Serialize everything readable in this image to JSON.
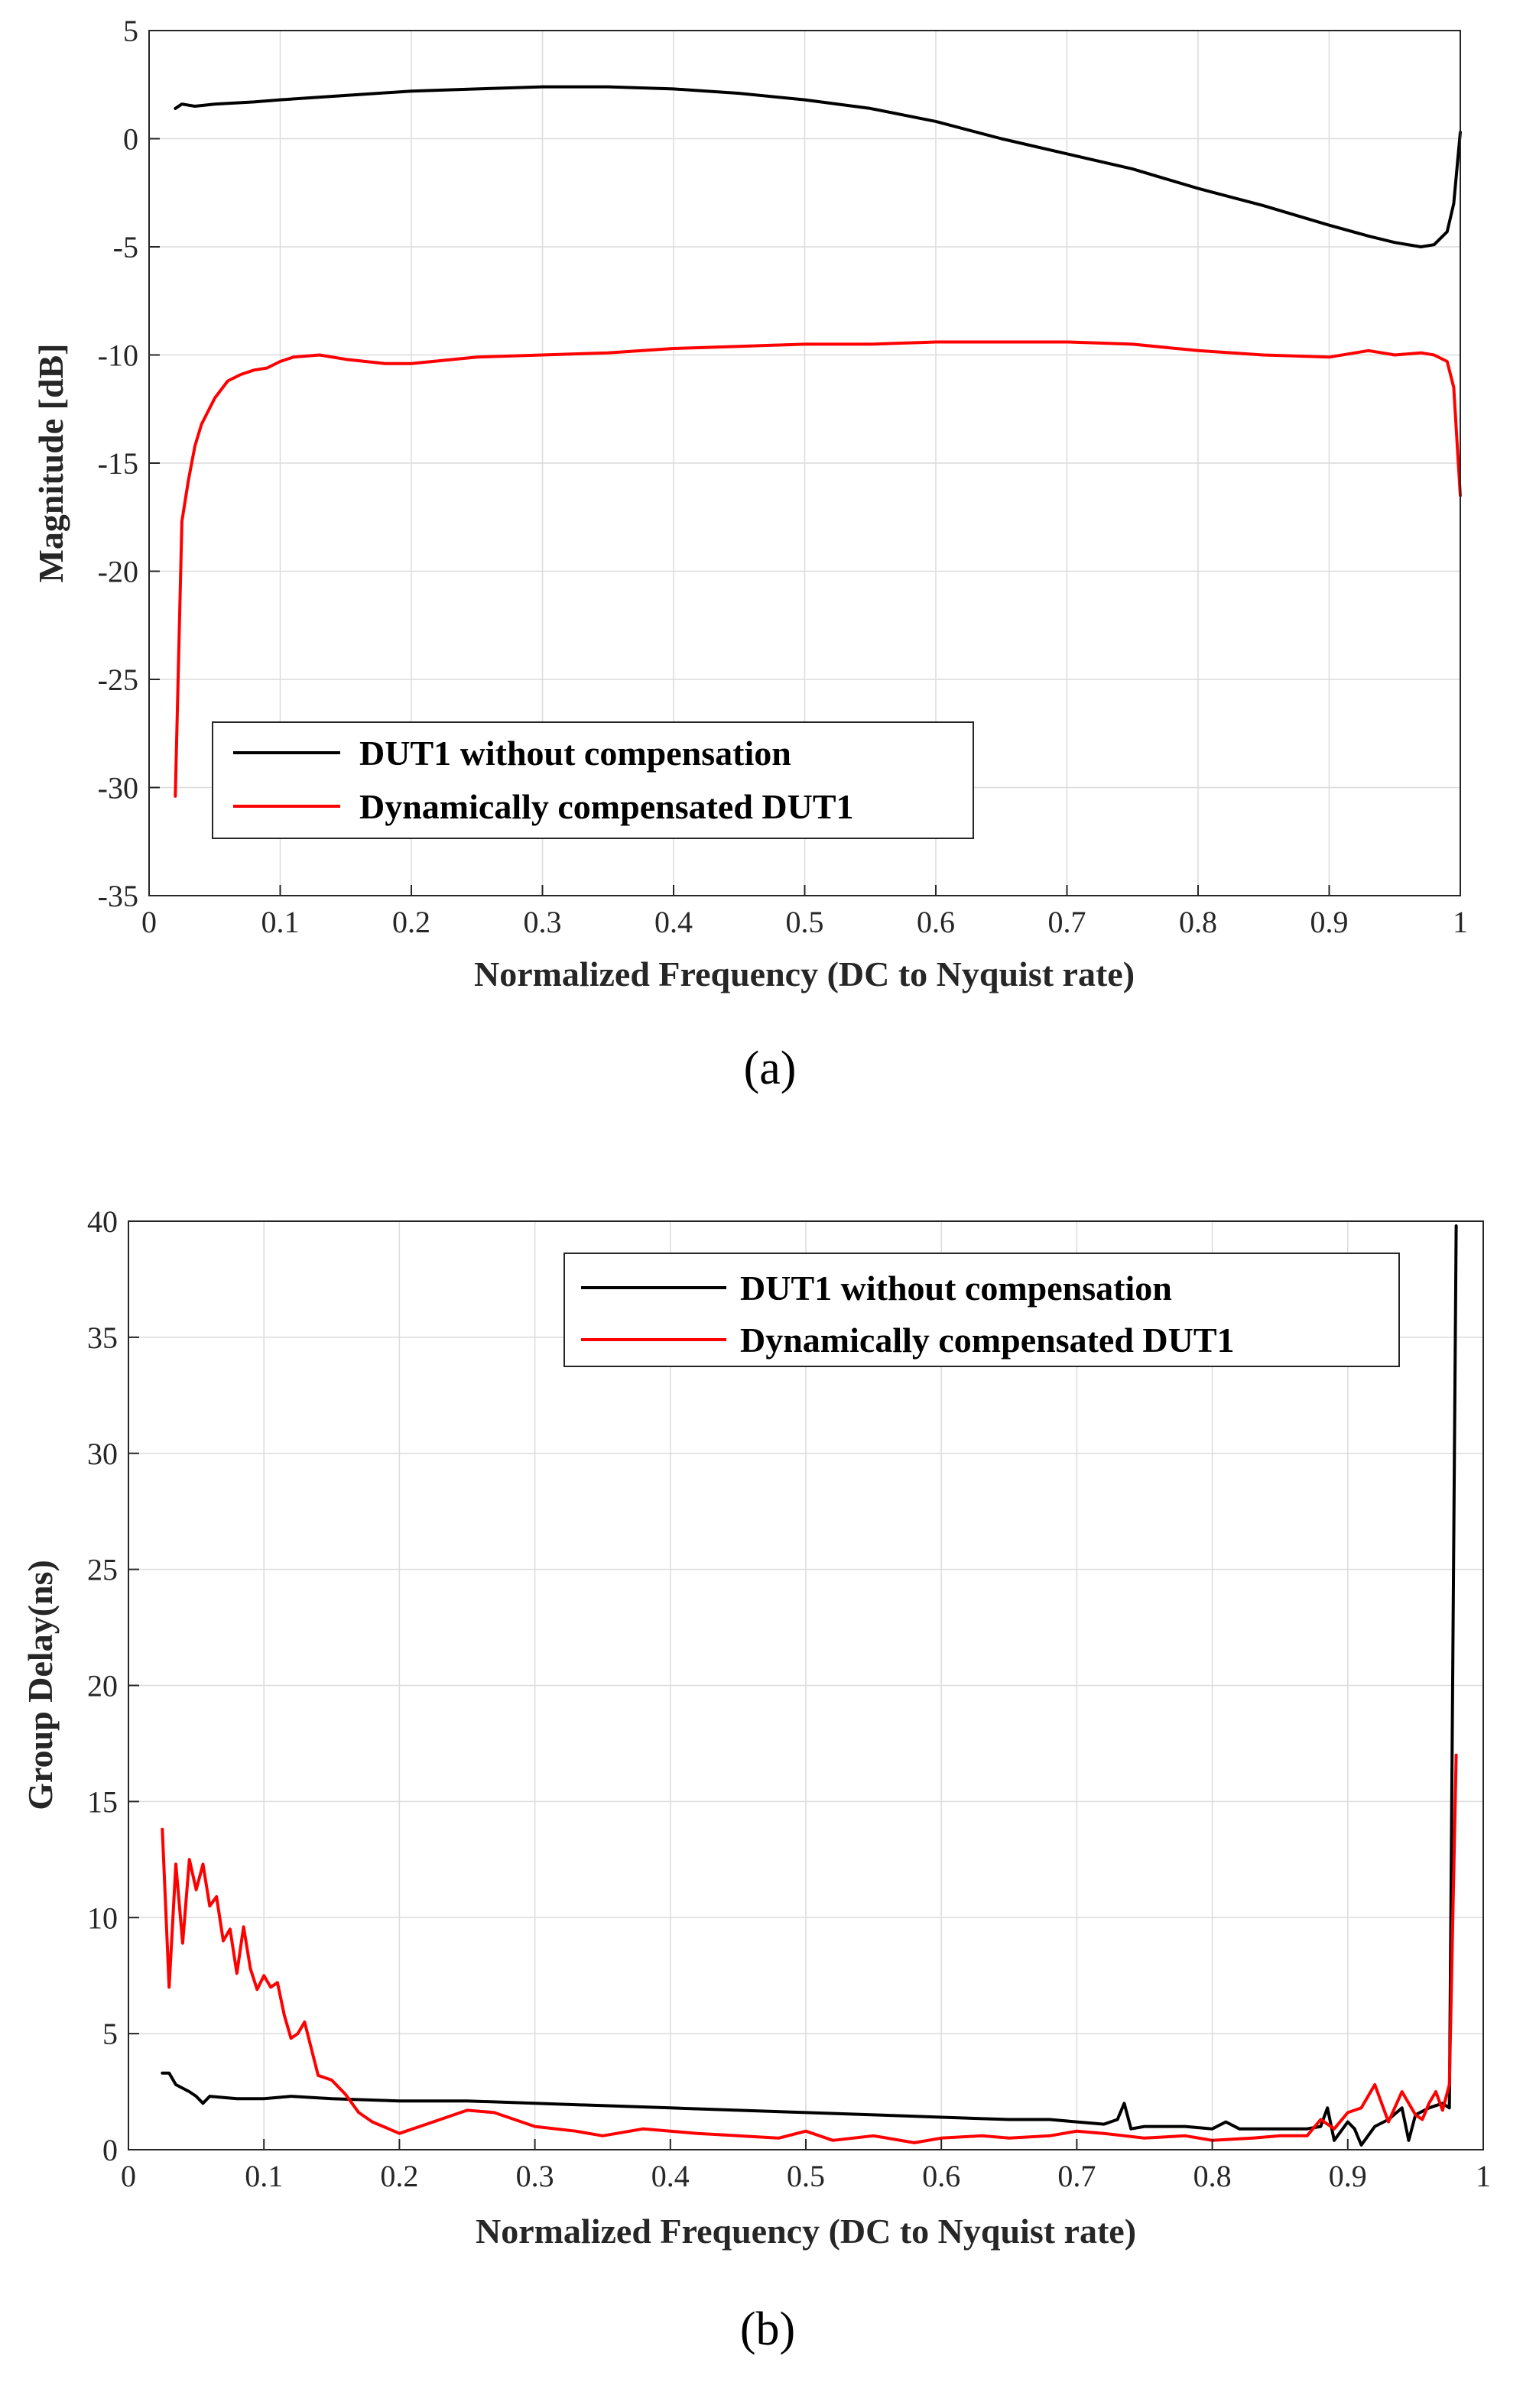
{
  "chart_data": [
    {
      "type": "line",
      "panel_label": "(a)",
      "xlabel": "Normalized Frequency (DC to Nyquist rate)",
      "ylabel": "Magnitude [dB]",
      "xlim": [
        0,
        1
      ],
      "ylim": [
        -35,
        5
      ],
      "xticks": [
        0,
        0.1,
        0.2,
        0.3,
        0.4,
        0.5,
        0.6,
        0.7,
        0.8,
        0.9,
        1
      ],
      "xtick_labels": [
        "0",
        "0.1",
        "0.2",
        "0.3",
        "0.4",
        "0.5",
        "0.6",
        "0.7",
        "0.8",
        "0.9",
        "1"
      ],
      "yticks": [
        5,
        0,
        -5,
        -10,
        -15,
        -20,
        -25,
        -30,
        -35
      ],
      "ytick_labels": [
        "5",
        "0",
        "-5",
        "-10",
        "-15",
        "-20",
        "-25",
        "-30",
        "-35"
      ],
      "grid": true,
      "legend": "bottom-left",
      "series": [
        {
          "name": "DUT1 without compensation",
          "color": "#000000",
          "x": [
            0.02,
            0.025,
            0.035,
            0.05,
            0.08,
            0.1,
            0.15,
            0.2,
            0.25,
            0.3,
            0.35,
            0.4,
            0.45,
            0.5,
            0.55,
            0.6,
            0.65,
            0.7,
            0.75,
            0.8,
            0.85,
            0.9,
            0.93,
            0.95,
            0.97,
            0.98,
            0.99,
            0.995,
            1.0
          ],
          "y": [
            1.4,
            1.6,
            1.5,
            1.6,
            1.7,
            1.8,
            2.0,
            2.2,
            2.3,
            2.4,
            2.4,
            2.3,
            2.1,
            1.8,
            1.4,
            0.8,
            0.0,
            -0.7,
            -1.4,
            -2.3,
            -3.1,
            -4.0,
            -4.5,
            -4.8,
            -5.0,
            -4.9,
            -4.3,
            -3.0,
            0.3
          ]
        },
        {
          "name": "Dynamically compensated DUT1",
          "color": "#ff0000",
          "x": [
            0.02,
            0.025,
            0.03,
            0.035,
            0.04,
            0.05,
            0.06,
            0.07,
            0.08,
            0.09,
            0.1,
            0.11,
            0.13,
            0.15,
            0.18,
            0.2,
            0.25,
            0.3,
            0.35,
            0.4,
            0.45,
            0.5,
            0.55,
            0.6,
            0.65,
            0.7,
            0.75,
            0.8,
            0.85,
            0.9,
            0.93,
            0.95,
            0.97,
            0.98,
            0.99,
            0.995,
            1.0
          ],
          "y": [
            -30.4,
            -17.7,
            -15.8,
            -14.2,
            -13.2,
            -12.0,
            -11.2,
            -10.9,
            -10.7,
            -10.6,
            -10.3,
            -10.1,
            -10.0,
            -10.2,
            -10.4,
            -10.4,
            -10.1,
            -10.0,
            -9.9,
            -9.7,
            -9.6,
            -9.5,
            -9.5,
            -9.4,
            -9.4,
            -9.4,
            -9.5,
            -9.8,
            -10.0,
            -10.1,
            -9.8,
            -10.0,
            -9.9,
            -10.0,
            -10.3,
            -11.5,
            -16.5
          ]
        }
      ]
    },
    {
      "type": "line",
      "panel_label": "(b)",
      "xlabel": "Normalized Frequency (DC to Nyquist rate)",
      "ylabel": "Group Delay(ns)",
      "xlim": [
        0,
        1
      ],
      "ylim": [
        0,
        40
      ],
      "xticks": [
        0,
        0.1,
        0.2,
        0.3,
        0.4,
        0.5,
        0.6,
        0.7,
        0.8,
        0.9,
        1
      ],
      "xtick_labels": [
        "0",
        "0.1",
        "0.2",
        "0.3",
        "0.4",
        "0.5",
        "0.6",
        "0.7",
        "0.8",
        "0.9",
        "1"
      ],
      "yticks": [
        0,
        5,
        10,
        15,
        20,
        25,
        30,
        35,
        40
      ],
      "ytick_labels": [
        "0",
        "5",
        "10",
        "15",
        "20",
        "25",
        "30",
        "35",
        "40"
      ],
      "grid": true,
      "legend": "top-right",
      "series": [
        {
          "name": "DUT1 without compensation",
          "color": "#000000",
          "x": [
            0.025,
            0.03,
            0.035,
            0.045,
            0.05,
            0.055,
            0.06,
            0.08,
            0.1,
            0.12,
            0.15,
            0.2,
            0.25,
            0.3,
            0.35,
            0.4,
            0.45,
            0.5,
            0.55,
            0.6,
            0.65,
            0.68,
            0.7,
            0.72,
            0.73,
            0.735,
            0.74,
            0.75,
            0.78,
            0.8,
            0.81,
            0.82,
            0.85,
            0.87,
            0.88,
            0.885,
            0.89,
            0.9,
            0.905,
            0.91,
            0.92,
            0.93,
            0.94,
            0.945,
            0.95,
            0.96,
            0.97,
            0.975,
            0.98
          ],
          "y": [
            3.3,
            3.3,
            2.8,
            2.5,
            2.3,
            2.0,
            2.3,
            2.2,
            2.2,
            2.3,
            2.2,
            2.1,
            2.1,
            2.0,
            1.9,
            1.8,
            1.7,
            1.6,
            1.5,
            1.4,
            1.3,
            1.3,
            1.2,
            1.1,
            1.3,
            2.0,
            0.9,
            1.0,
            1.0,
            0.9,
            1.2,
            0.9,
            0.9,
            0.9,
            1.0,
            1.8,
            0.4,
            1.2,
            0.9,
            0.2,
            1.0,
            1.3,
            1.8,
            0.4,
            1.5,
            1.8,
            2.0,
            1.8,
            39.8
          ]
        },
        {
          "name": "Dynamically compensated DUT1",
          "color": "#ff0000",
          "x": [
            0.025,
            0.03,
            0.035,
            0.04,
            0.045,
            0.05,
            0.055,
            0.06,
            0.065,
            0.07,
            0.075,
            0.08,
            0.085,
            0.09,
            0.095,
            0.1,
            0.105,
            0.11,
            0.115,
            0.12,
            0.125,
            0.13,
            0.14,
            0.15,
            0.16,
            0.17,
            0.18,
            0.2,
            0.22,
            0.25,
            0.27,
            0.3,
            0.33,
            0.35,
            0.38,
            0.4,
            0.42,
            0.45,
            0.48,
            0.5,
            0.52,
            0.55,
            0.58,
            0.6,
            0.63,
            0.65,
            0.68,
            0.7,
            0.72,
            0.75,
            0.78,
            0.8,
            0.83,
            0.85,
            0.87,
            0.88,
            0.89,
            0.9,
            0.91,
            0.92,
            0.93,
            0.94,
            0.95,
            0.955,
            0.96,
            0.965,
            0.97,
            0.975,
            0.98
          ],
          "y": [
            13.8,
            7.0,
            12.3,
            8.9,
            12.5,
            11.2,
            12.3,
            10.5,
            10.9,
            9.0,
            9.5,
            7.6,
            9.6,
            7.8,
            6.9,
            7.5,
            7.0,
            7.2,
            5.8,
            4.8,
            5.0,
            5.5,
            3.2,
            3.0,
            2.4,
            1.6,
            1.2,
            0.7,
            1.1,
            1.7,
            1.6,
            1.0,
            0.8,
            0.6,
            0.9,
            0.8,
            0.7,
            0.6,
            0.5,
            0.8,
            0.4,
            0.6,
            0.3,
            0.5,
            0.6,
            0.5,
            0.6,
            0.8,
            0.7,
            0.5,
            0.6,
            0.4,
            0.5,
            0.6,
            0.6,
            1.3,
            0.9,
            1.6,
            1.8,
            2.8,
            1.2,
            2.5,
            1.5,
            1.3,
            2.0,
            2.5,
            1.7,
            2.8,
            17.0
          ]
        }
      ]
    }
  ]
}
